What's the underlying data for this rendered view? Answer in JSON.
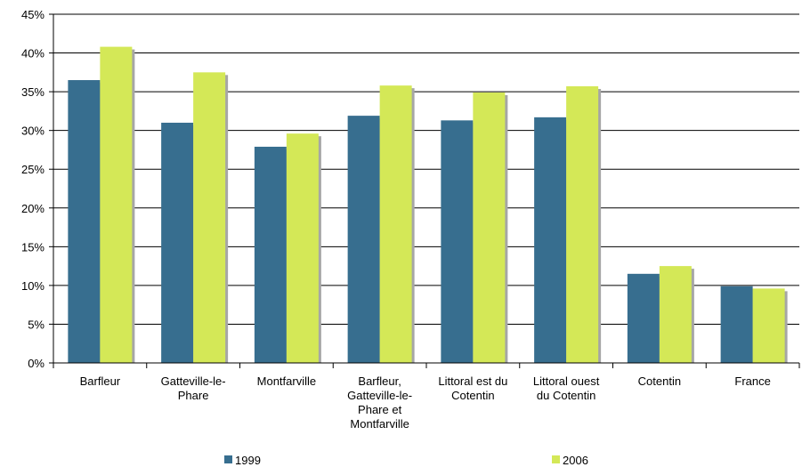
{
  "chart_data": {
    "type": "bar",
    "categories": [
      [
        "Barfleur"
      ],
      [
        "Gatteville-le-",
        "Phare"
      ],
      [
        "Montfarville"
      ],
      [
        "Barfleur,",
        "Gatteville-le-",
        "Phare et",
        "Montfarville"
      ],
      [
        "Littoral est du",
        "Cotentin"
      ],
      [
        "Littoral ouest",
        "du Cotentin"
      ],
      [
        "Cotentin"
      ],
      [
        "France"
      ]
    ],
    "series": [
      {
        "name": "1999",
        "color": "#376e8f",
        "values": [
          36.5,
          31.0,
          27.9,
          31.9,
          31.3,
          31.7,
          11.5,
          9.9
        ]
      },
      {
        "name": "2006",
        "color": "#d4e857",
        "values": [
          40.8,
          37.5,
          29.6,
          35.8,
          34.9,
          35.7,
          12.5,
          9.6
        ]
      }
    ],
    "ylim": [
      0,
      45
    ],
    "yticks": [
      "0%",
      "5%",
      "10%",
      "15%",
      "20%",
      "25%",
      "30%",
      "35%",
      "40%",
      "45%"
    ],
    "ytick_values": [
      0,
      5,
      10,
      15,
      20,
      25,
      30,
      35,
      40,
      45
    ],
    "grid": true,
    "legend": "bottom",
    "title": "",
    "xlabel": "",
    "ylabel": ""
  }
}
